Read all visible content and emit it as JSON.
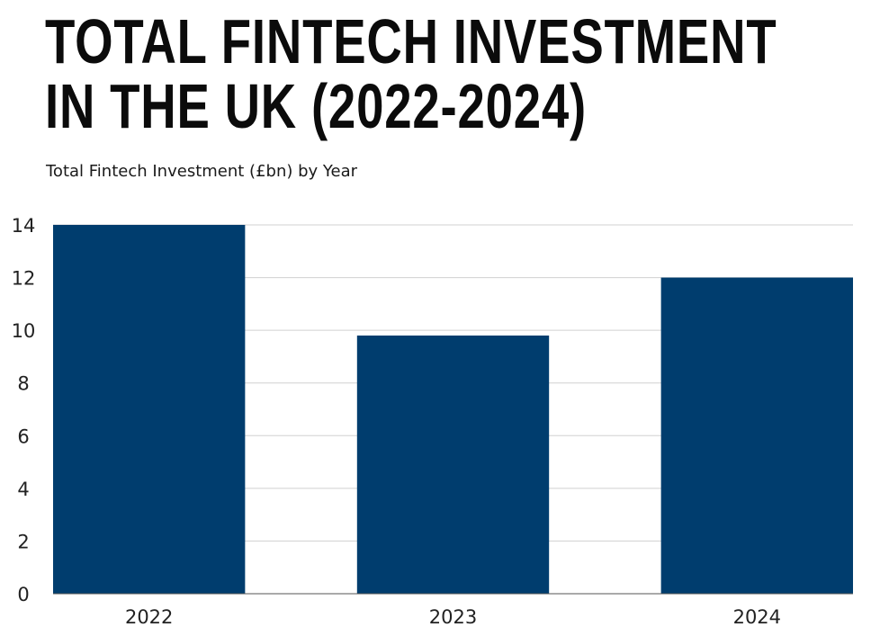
{
  "title_line1": "TOTAL FINTECH INVESTMENT",
  "title_line2": "IN THE UK (2022-2024)",
  "subtitle": "Total Fintech Investment (£bn) by Year",
  "colors": {
    "bar": "#003d6e",
    "grid": "#d0d0d0",
    "axis": "#555555"
  },
  "chart_data": {
    "type": "bar",
    "title": "TOTAL FINTECH INVESTMENT IN THE UK (2022-2024)",
    "subtitle": "Total Fintech Investment (£bn) by Year",
    "categories": [
      "2022",
      "2023",
      "2024"
    ],
    "values": [
      14,
      9.8,
      12
    ],
    "ylim": [
      0,
      14
    ],
    "yticks": [
      0,
      2,
      4,
      6,
      8,
      10,
      12,
      14
    ],
    "xlabel": "",
    "ylabel": "",
    "grid": true,
    "legend": "none"
  }
}
